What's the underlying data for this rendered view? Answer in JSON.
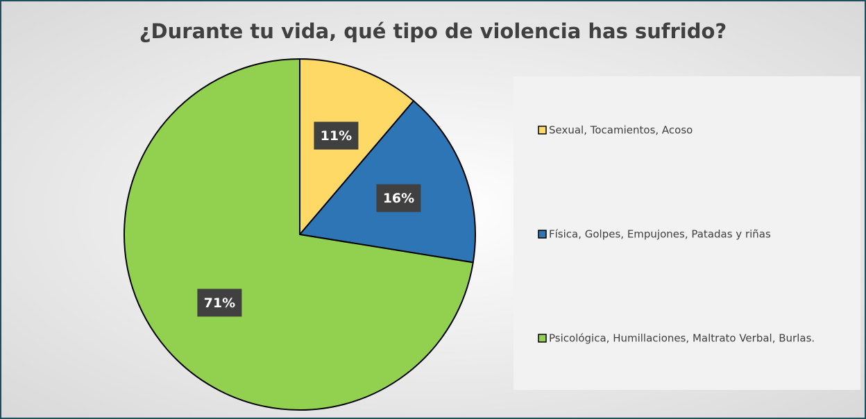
{
  "chart_data": {
    "type": "pie",
    "title": "¿Durante tu vida, qué tipo de violencia has sufrido?",
    "categories": [
      "Sexual, Tocamientos, Acoso",
      "Física, Golpes, Empujones, Patadas y riñas",
      "Psicológica, Humillaciones, Maltrato Verbal, Burlas."
    ],
    "values": [
      11,
      16,
      71
    ],
    "value_labels": [
      "11%",
      "16%",
      "71%"
    ],
    "colors": [
      "#ffd966",
      "#2e75b6",
      "#92d050"
    ],
    "legend": "right"
  }
}
